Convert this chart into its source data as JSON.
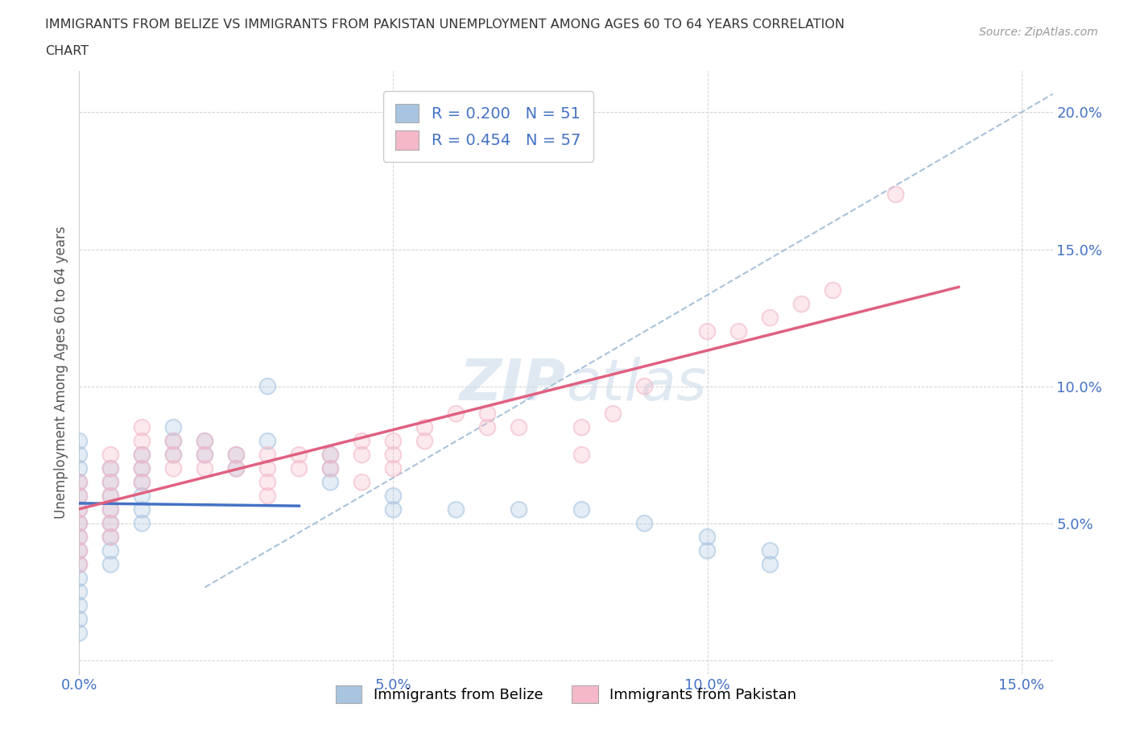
{
  "title_line1": "IMMIGRANTS FROM BELIZE VS IMMIGRANTS FROM PAKISTAN UNEMPLOYMENT AMONG AGES 60 TO 64 YEARS CORRELATION",
  "title_line2": "CHART",
  "source_text": "Source: ZipAtlas.com",
  "ylabel": "Unemployment Among Ages 60 to 64 years",
  "xlim": [
    0.0,
    0.155
  ],
  "ylim": [
    -0.005,
    0.215
  ],
  "xticks": [
    0.0,
    0.05,
    0.1,
    0.15
  ],
  "xticklabels": [
    "0.0%",
    "5.0%",
    "10.0%",
    "15.0%"
  ],
  "yticks": [
    0.0,
    0.05,
    0.1,
    0.15,
    0.2
  ],
  "yticklabels": [
    "",
    "5.0%",
    "10.0%",
    "15.0%",
    "20.0%"
  ],
  "belize_color": "#a8c4e0",
  "pakistan_color": "#f4b8c8",
  "belize_line_color": "#4472c4",
  "pakistan_line_color": "#e06080",
  "R_belize": 0.2,
  "N_belize": 51,
  "R_pakistan": 0.454,
  "N_pakistan": 57,
  "legend_label_belize": "Immigrants from Belize",
  "legend_label_pakistan": "Immigrants from Pakistan",
  "watermark": "ZIPatlas",
  "belize_x": [
    0.0,
    0.0,
    0.0,
    0.0,
    0.0,
    0.0,
    0.0,
    0.0,
    0.0,
    0.0,
    0.0,
    0.0,
    0.0,
    0.0,
    0.0,
    0.005,
    0.005,
    0.005,
    0.005,
    0.005,
    0.005,
    0.005,
    0.005,
    0.01,
    0.01,
    0.01,
    0.01,
    0.01,
    0.01,
    0.015,
    0.015,
    0.015,
    0.02,
    0.02,
    0.025,
    0.025,
    0.03,
    0.03,
    0.04,
    0.04,
    0.04,
    0.05,
    0.05,
    0.06,
    0.07,
    0.08,
    0.09,
    0.1,
    0.1,
    0.11,
    0.11
  ],
  "belize_y": [
    0.08,
    0.075,
    0.07,
    0.065,
    0.06,
    0.055,
    0.05,
    0.045,
    0.04,
    0.035,
    0.03,
    0.025,
    0.02,
    0.015,
    0.01,
    0.07,
    0.065,
    0.06,
    0.055,
    0.05,
    0.045,
    0.04,
    0.035,
    0.075,
    0.07,
    0.065,
    0.06,
    0.055,
    0.05,
    0.085,
    0.08,
    0.075,
    0.08,
    0.075,
    0.075,
    0.07,
    0.1,
    0.08,
    0.075,
    0.07,
    0.065,
    0.06,
    0.055,
    0.055,
    0.055,
    0.055,
    0.05,
    0.045,
    0.04,
    0.04,
    0.035
  ],
  "pakistan_x": [
    0.0,
    0.0,
    0.0,
    0.0,
    0.0,
    0.0,
    0.0,
    0.005,
    0.005,
    0.005,
    0.005,
    0.005,
    0.005,
    0.005,
    0.01,
    0.01,
    0.01,
    0.01,
    0.01,
    0.015,
    0.015,
    0.015,
    0.02,
    0.02,
    0.02,
    0.025,
    0.025,
    0.03,
    0.03,
    0.03,
    0.03,
    0.035,
    0.035,
    0.04,
    0.04,
    0.045,
    0.045,
    0.045,
    0.05,
    0.05,
    0.05,
    0.055,
    0.055,
    0.06,
    0.065,
    0.065,
    0.07,
    0.08,
    0.08,
    0.085,
    0.09,
    0.1,
    0.105,
    0.11,
    0.115,
    0.12,
    0.13
  ],
  "pakistan_y": [
    0.065,
    0.06,
    0.055,
    0.05,
    0.045,
    0.04,
    0.035,
    0.075,
    0.07,
    0.065,
    0.06,
    0.055,
    0.05,
    0.045,
    0.085,
    0.08,
    0.075,
    0.07,
    0.065,
    0.08,
    0.075,
    0.07,
    0.08,
    0.075,
    0.07,
    0.075,
    0.07,
    0.075,
    0.07,
    0.065,
    0.06,
    0.075,
    0.07,
    0.075,
    0.07,
    0.08,
    0.075,
    0.065,
    0.08,
    0.075,
    0.07,
    0.085,
    0.08,
    0.09,
    0.09,
    0.085,
    0.085,
    0.085,
    0.075,
    0.09,
    0.1,
    0.12,
    0.12,
    0.125,
    0.13,
    0.135,
    0.17
  ]
}
